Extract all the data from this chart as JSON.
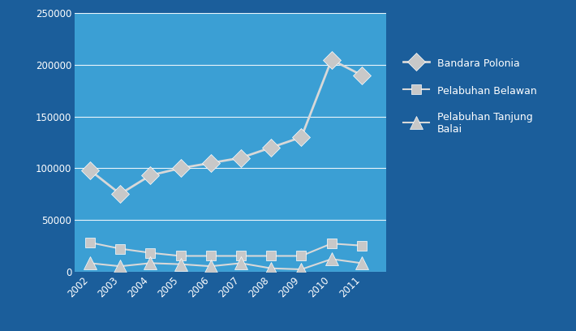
{
  "years": [
    2002,
    2003,
    2004,
    2005,
    2006,
    2007,
    2008,
    2009,
    2010,
    2011
  ],
  "bandara_polonia": [
    98000,
    75000,
    93000,
    100000,
    105000,
    110000,
    120000,
    130000,
    205000,
    190000
  ],
  "pelabuhan_belawan": [
    28000,
    22000,
    18000,
    15000,
    15000,
    15000,
    15000,
    15000,
    27000,
    25000
  ],
  "pelabuhan_tanjung_balai": [
    8000,
    5000,
    8000,
    7000,
    5000,
    8000,
    3000,
    2000,
    12000,
    8000
  ],
  "plot_bg_color": "#3B9FD4",
  "outer_bg_color": "#1B5E9B",
  "line_color": "#D8D8D8",
  "marker_color": "#C8C8C8",
  "text_color": "white",
  "ylim": [
    0,
    250000
  ],
  "yticks": [
    0,
    50000,
    100000,
    150000,
    200000,
    250000
  ],
  "ytick_labels": [
    "0",
    "50000",
    "100000",
    "150000",
    "200000",
    "250000"
  ],
  "legend_bandara": "Bandara Polonia",
  "legend_belawan": "Pelabuhan Belawan",
  "legend_tanjung": "Pelabuhan Tanjung\nBalai"
}
